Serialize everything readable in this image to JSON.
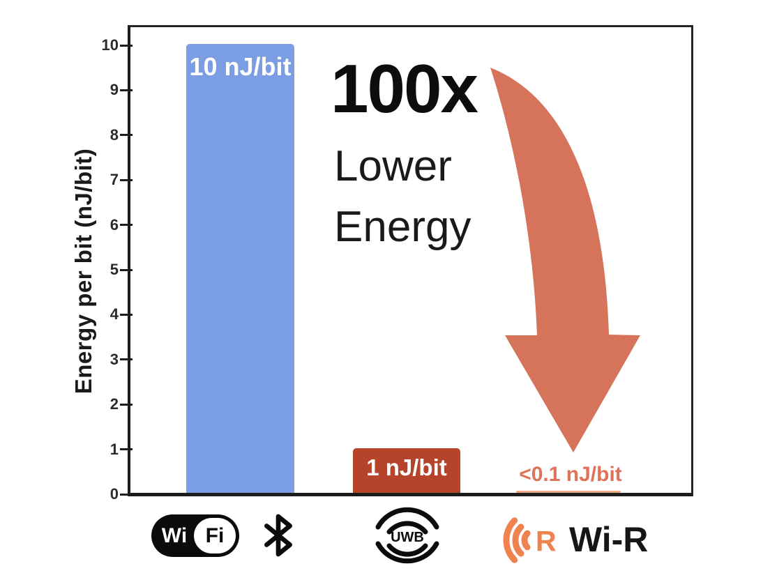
{
  "chart_data": {
    "type": "bar",
    "title": "",
    "categories": [
      "Wi-Fi + Bluetooth",
      "UWB",
      "Wi-R"
    ],
    "values": [
      10,
      1,
      0.1
    ],
    "bar_labels": [
      "10 nJ/bit",
      "1 nJ/bit",
      "<0.1 nJ/bit"
    ],
    "bar_colors": [
      "#7b9de4",
      "#b5442b",
      "#eda983"
    ],
    "xlabel": "",
    "ylabel": "Energy per bit (nJ/bit)",
    "ylim": [
      0,
      10
    ],
    "yticks": [
      0,
      1,
      2,
      3,
      4,
      5,
      6,
      7,
      8,
      9,
      10
    ],
    "grid": false,
    "legend": false,
    "wir_label_color": "#dd7459",
    "annotation": {
      "headline": "100x",
      "line1": "Lower",
      "line2": "Energy",
      "arrow": "curved-down-arrow",
      "arrow_color": "#d5735b"
    }
  },
  "icons": {
    "wifi_badge": {
      "left_text": "Wi",
      "right_text": "Fi"
    },
    "bluetooth": {
      "name": "bluetooth-rune"
    },
    "uwb_badge": {
      "text": "UWB"
    },
    "wir_logo": {
      "r_text": "R",
      "wordmark": "Wi-R",
      "accent_color": "#ef8350"
    }
  }
}
